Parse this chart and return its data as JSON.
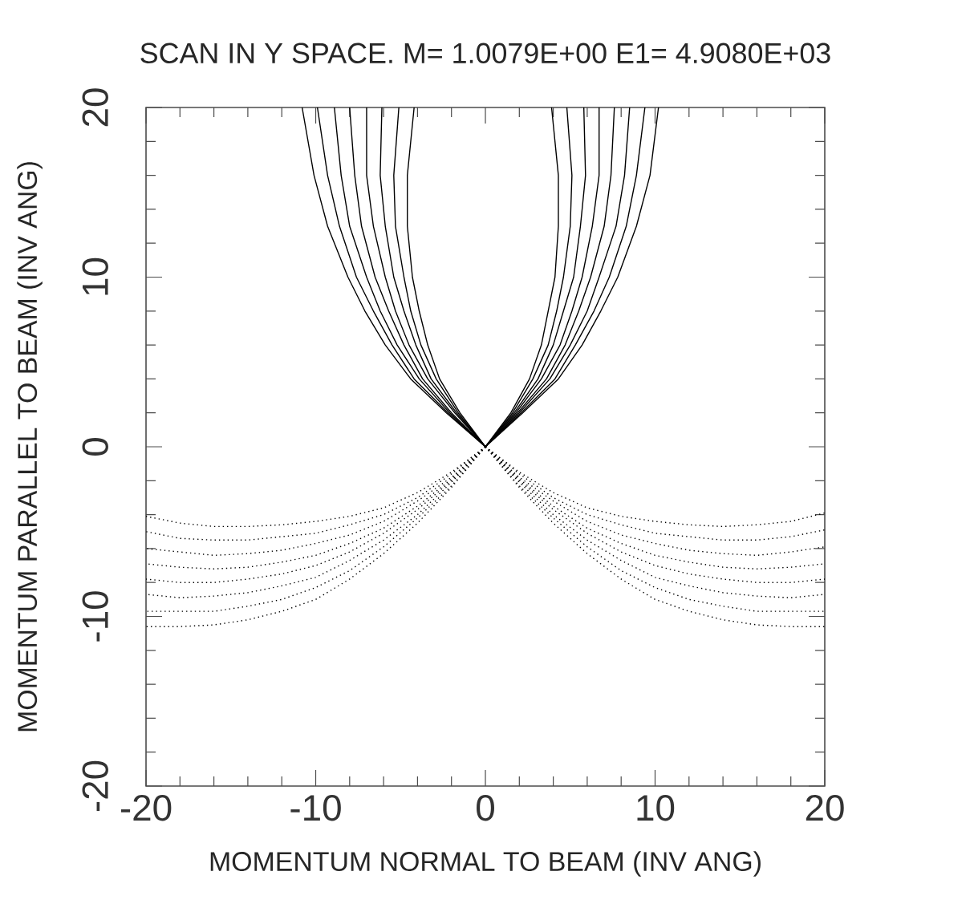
{
  "chart_data": {
    "type": "line",
    "title": "SCAN IN Y SPACE. M= 1.0079E+00 E1= 4.9080E+03",
    "xlabel": "MOMENTUM NORMAL TO BEAM (INV ANG)",
    "ylabel": "MOMENTUM PARALLEL TO BEAM (INV ANG)",
    "xlim": [
      -20,
      20
    ],
    "ylim": [
      -20,
      20
    ],
    "xticks": [
      -20,
      {
        "value": -18,
        "label": null
      },
      {
        "value": -16,
        "label": null
      },
      {
        "value": -14,
        "label": null
      },
      {
        "value": -12,
        "label": null
      },
      -10,
      {
        "value": -8,
        "label": null
      },
      {
        "value": -6,
        "label": null
      },
      {
        "value": -4,
        "label": null
      },
      {
        "value": -2,
        "label": null
      },
      0,
      {
        "value": 2,
        "label": null
      },
      {
        "value": 4,
        "label": null
      },
      {
        "value": 6,
        "label": null
      },
      {
        "value": 8,
        "label": null
      },
      10,
      {
        "value": 12,
        "label": null
      },
      {
        "value": 14,
        "label": null
      },
      {
        "value": 16,
        "label": null
      },
      {
        "value": 18,
        "label": null
      },
      20
    ],
    "yticks": [
      -20,
      {
        "value": -18,
        "label": null
      },
      {
        "value": -16,
        "label": null
      },
      {
        "value": -14,
        "label": null
      },
      {
        "value": -12,
        "label": null
      },
      -10,
      {
        "value": -8,
        "label": null
      },
      {
        "value": -6,
        "label": null
      },
      {
        "value": -4,
        "label": null
      },
      {
        "value": -2,
        "label": null
      },
      0,
      {
        "value": 2,
        "label": null
      },
      {
        "value": 4,
        "label": null
      },
      {
        "value": 6,
        "label": null
      },
      {
        "value": 8,
        "label": null
      },
      10,
      {
        "value": 12,
        "label": null
      },
      {
        "value": 14,
        "label": null
      },
      {
        "value": 16,
        "label": null
      },
      {
        "value": 18,
        "label": null
      },
      20
    ],
    "series": [
      {
        "color": "#000000",
        "line_style": "solid",
        "x": [
          0,
          -1.5,
          -2.7,
          -3.4,
          -3.9,
          -4.3,
          -4.6,
          -4.6,
          -4.2
        ],
        "values": [
          0,
          2,
          4,
          6,
          8,
          10,
          13,
          16,
          20
        ]
      },
      {
        "color": "#000000",
        "line_style": "solid",
        "x": [
          0,
          -1.6,
          -2.9,
          -3.8,
          -4.4,
          -4.8,
          -5.3,
          -5.4,
          -5.1
        ],
        "values": [
          0,
          2,
          4,
          6,
          8,
          10,
          13,
          16,
          20
        ]
      },
      {
        "color": "#000000",
        "line_style": "solid",
        "x": [
          0,
          -1.7,
          -3.2,
          -4.1,
          -4.8,
          -5.4,
          -5.9,
          -6.2,
          -6.1
        ],
        "values": [
          0,
          2,
          4,
          6,
          8,
          10,
          13,
          16,
          20
        ]
      },
      {
        "color": "#000000",
        "line_style": "solid",
        "x": [
          0,
          -1.8,
          -3.4,
          -4.5,
          -5.3,
          -5.9,
          -6.6,
          -7.0,
          -7.0
        ],
        "values": [
          0,
          2,
          4,
          6,
          8,
          10,
          13,
          16,
          20
        ]
      },
      {
        "color": "#000000",
        "line_style": "solid",
        "x": [
          0,
          -2.0,
          -3.7,
          -4.8,
          -5.7,
          -6.5,
          -7.3,
          -7.7,
          -8.0
        ],
        "values": [
          0,
          2,
          4,
          6,
          8,
          10,
          13,
          16,
          20
        ]
      },
      {
        "color": "#000000",
        "line_style": "solid",
        "x": [
          0,
          -2.1,
          -3.9,
          -5.2,
          -6.2,
          -7.0,
          -8.0,
          -8.5,
          -8.9
        ],
        "values": [
          0,
          2,
          4,
          6,
          8,
          10,
          13,
          16,
          20
        ]
      },
      {
        "color": "#000000",
        "line_style": "solid",
        "x": [
          0,
          -2.2,
          -4.2,
          -5.5,
          -6.6,
          -7.6,
          -8.6,
          -9.3,
          -9.9
        ],
        "values": [
          0,
          2,
          4,
          6,
          8,
          10,
          13,
          16,
          20
        ]
      },
      {
        "color": "#000000",
        "line_style": "solid",
        "x": [
          0,
          -2.3,
          -4.4,
          -5.9,
          -7.1,
          -8.1,
          -9.3,
          -10.1,
          -10.8
        ],
        "values": [
          0,
          2,
          4,
          6,
          8,
          10,
          13,
          16,
          20
        ]
      },
      {
        "color": "#000000",
        "line_style": "solid",
        "x": [
          0,
          1.5,
          2.6,
          3.3,
          3.7,
          4.1,
          4.3,
          4.3,
          3.9
        ],
        "values": [
          0,
          2,
          4,
          6,
          8,
          10,
          13,
          16,
          20
        ]
      },
      {
        "color": "#000000",
        "line_style": "solid",
        "x": [
          0,
          1.6,
          2.8,
          3.7,
          4.2,
          4.6,
          5.0,
          5.1,
          4.8
        ],
        "values": [
          0,
          2,
          4,
          6,
          8,
          10,
          13,
          16,
          20
        ]
      },
      {
        "color": "#000000",
        "line_style": "solid",
        "x": [
          0,
          1.7,
          3.1,
          4.0,
          4.6,
          5.2,
          5.6,
          5.9,
          5.8
        ],
        "values": [
          0,
          2,
          4,
          6,
          8,
          10,
          13,
          16,
          20
        ]
      },
      {
        "color": "#000000",
        "line_style": "solid",
        "x": [
          0,
          1.8,
          3.3,
          4.4,
          5.1,
          5.7,
          6.3,
          6.7,
          6.7
        ],
        "values": [
          0,
          2,
          4,
          6,
          8,
          10,
          13,
          16,
          20
        ]
      },
      {
        "color": "#000000",
        "line_style": "solid",
        "x": [
          0,
          1.9,
          3.6,
          4.7,
          5.5,
          6.2,
          7.0,
          7.4,
          7.6
        ],
        "values": [
          0,
          2,
          4,
          6,
          8,
          10,
          13,
          16,
          20
        ]
      },
      {
        "color": "#000000",
        "line_style": "solid",
        "x": [
          0,
          2.0,
          3.8,
          5.0,
          6.0,
          6.7,
          7.7,
          8.2,
          8.5
        ],
        "values": [
          0,
          2,
          4,
          6,
          8,
          10,
          13,
          16,
          20
        ]
      },
      {
        "color": "#000000",
        "line_style": "solid",
        "x": [
          0,
          2.1,
          4.1,
          5.3,
          6.4,
          7.3,
          8.3,
          8.9,
          9.4
        ],
        "values": [
          0,
          2,
          4,
          6,
          8,
          10,
          13,
          16,
          20
        ]
      },
      {
        "color": "#000000",
        "line_style": "solid",
        "x": [
          0,
          2.2,
          4.3,
          5.7,
          6.8,
          7.8,
          8.9,
          9.7,
          10.2
        ],
        "values": [
          0,
          2,
          4,
          6,
          8,
          10,
          13,
          16,
          20
        ]
      },
      {
        "color": "#000000",
        "line_style": "dotted",
        "x": [
          0,
          -2,
          -4,
          -6,
          -8,
          -10,
          -12,
          -14,
          -16,
          -18,
          -20
        ],
        "values": [
          0,
          -1.5,
          -2.7,
          -3.6,
          -4.1,
          -4.4,
          -4.6,
          -4.7,
          -4.7,
          -4.5,
          -4.1
        ]
      },
      {
        "color": "#000000",
        "line_style": "dotted",
        "x": [
          0,
          -2,
          -4,
          -6,
          -8,
          -10,
          -12,
          -14,
          -16,
          -18,
          -20
        ],
        "values": [
          0,
          -1.6,
          -3.0,
          -4.0,
          -4.6,
          -5.1,
          -5.3,
          -5.5,
          -5.5,
          -5.4,
          -5.0
        ]
      },
      {
        "color": "#000000",
        "line_style": "dotted",
        "x": [
          0,
          -2,
          -4,
          -6,
          -8,
          -10,
          -12,
          -14,
          -16,
          -18,
          -20
        ],
        "values": [
          0,
          -1.8,
          -3.2,
          -4.4,
          -5.2,
          -5.7,
          -6.1,
          -6.3,
          -6.4,
          -6.2,
          -6.0
        ]
      },
      {
        "color": "#000000",
        "line_style": "dotted",
        "x": [
          0,
          -2,
          -4,
          -6,
          -8,
          -10,
          -12,
          -14,
          -16,
          -18,
          -20
        ],
        "values": [
          0,
          -1.9,
          -3.5,
          -4.8,
          -5.7,
          -6.4,
          -6.8,
          -7.1,
          -7.2,
          -7.1,
          -6.9
        ]
      },
      {
        "color": "#000000",
        "line_style": "dotted",
        "x": [
          0,
          -2,
          -4,
          -6,
          -8,
          -10,
          -12,
          -14,
          -16,
          -18,
          -20
        ],
        "values": [
          0,
          -2.0,
          -3.7,
          -5.1,
          -6.2,
          -7.0,
          -7.5,
          -7.8,
          -8.0,
          -8.0,
          -7.8
        ]
      },
      {
        "color": "#000000",
        "line_style": "dotted",
        "x": [
          0,
          -2,
          -4,
          -6,
          -8,
          -10,
          -12,
          -14,
          -16,
          -18,
          -20
        ],
        "values": [
          0,
          -2.1,
          -4.0,
          -5.5,
          -6.7,
          -7.7,
          -8.2,
          -8.6,
          -8.8,
          -8.9,
          -8.7
        ]
      },
      {
        "color": "#000000",
        "line_style": "dotted",
        "x": [
          0,
          -2,
          -4,
          -6,
          -8,
          -10,
          -12,
          -14,
          -16,
          -18,
          -20
        ],
        "values": [
          0,
          -2.3,
          -4.2,
          -5.9,
          -7.3,
          -8.3,
          -9.0,
          -9.4,
          -9.7,
          -9.7,
          -9.7
        ]
      },
      {
        "color": "#000000",
        "line_style": "dotted",
        "x": [
          0,
          -2,
          -4,
          -6,
          -8,
          -10,
          -12,
          -14,
          -16,
          -18,
          -20
        ],
        "values": [
          0,
          -2.4,
          -4.5,
          -6.3,
          -7.8,
          -9.0,
          -9.7,
          -10.2,
          -10.5,
          -10.6,
          -10.6
        ]
      },
      {
        "color": "#000000",
        "line_style": "dotted",
        "x": [
          0,
          2,
          4,
          6,
          8,
          10,
          12,
          14,
          16,
          18,
          20
        ],
        "values": [
          0,
          -1.5,
          -2.7,
          -3.6,
          -4.1,
          -4.4,
          -4.6,
          -4.7,
          -4.6,
          -4.4,
          -3.9
        ]
      },
      {
        "color": "#000000",
        "line_style": "dotted",
        "x": [
          0,
          2,
          4,
          6,
          8,
          10,
          12,
          14,
          16,
          18,
          20
        ],
        "values": [
          0,
          -1.6,
          -3.0,
          -4.0,
          -4.6,
          -5.1,
          -5.3,
          -5.5,
          -5.5,
          -5.3,
          -4.9
        ]
      },
      {
        "color": "#000000",
        "line_style": "dotted",
        "x": [
          0,
          2,
          4,
          6,
          8,
          10,
          12,
          14,
          16,
          18,
          20
        ],
        "values": [
          0,
          -1.8,
          -3.2,
          -4.4,
          -5.2,
          -5.7,
          -6.1,
          -6.3,
          -6.4,
          -6.2,
          -5.9
        ]
      },
      {
        "color": "#000000",
        "line_style": "dotted",
        "x": [
          0,
          2,
          4,
          6,
          8,
          10,
          12,
          14,
          16,
          18,
          20
        ],
        "values": [
          0,
          -1.9,
          -3.5,
          -4.8,
          -5.7,
          -6.4,
          -6.8,
          -7.1,
          -7.2,
          -7.1,
          -6.9
        ]
      },
      {
        "color": "#000000",
        "line_style": "dotted",
        "x": [
          0,
          2,
          4,
          6,
          8,
          10,
          12,
          14,
          16,
          18,
          20
        ],
        "values": [
          0,
          -2.0,
          -3.7,
          -5.1,
          -6.2,
          -7.0,
          -7.5,
          -7.8,
          -8.0,
          -8.0,
          -7.8
        ]
      },
      {
        "color": "#000000",
        "line_style": "dotted",
        "x": [
          0,
          2,
          4,
          6,
          8,
          10,
          12,
          14,
          16,
          18,
          20
        ],
        "values": [
          0,
          -2.1,
          -4.0,
          -5.5,
          -6.7,
          -7.7,
          -8.2,
          -8.6,
          -8.8,
          -8.9,
          -8.7
        ]
      },
      {
        "color": "#000000",
        "line_style": "dotted",
        "x": [
          0,
          2,
          4,
          6,
          8,
          10,
          12,
          14,
          16,
          18,
          20
        ],
        "values": [
          0,
          -2.3,
          -4.2,
          -5.9,
          -7.3,
          -8.3,
          -9.0,
          -9.4,
          -9.7,
          -9.7,
          -9.7
        ]
      },
      {
        "color": "#000000",
        "line_style": "dotted",
        "x": [
          0,
          2,
          4,
          6,
          8,
          10,
          12,
          14,
          16,
          18,
          20
        ],
        "values": [
          0,
          -2.4,
          -4.5,
          -6.3,
          -7.8,
          -9.0,
          -9.7,
          -10.2,
          -10.5,
          -10.6,
          -10.6
        ]
      }
    ]
  }
}
